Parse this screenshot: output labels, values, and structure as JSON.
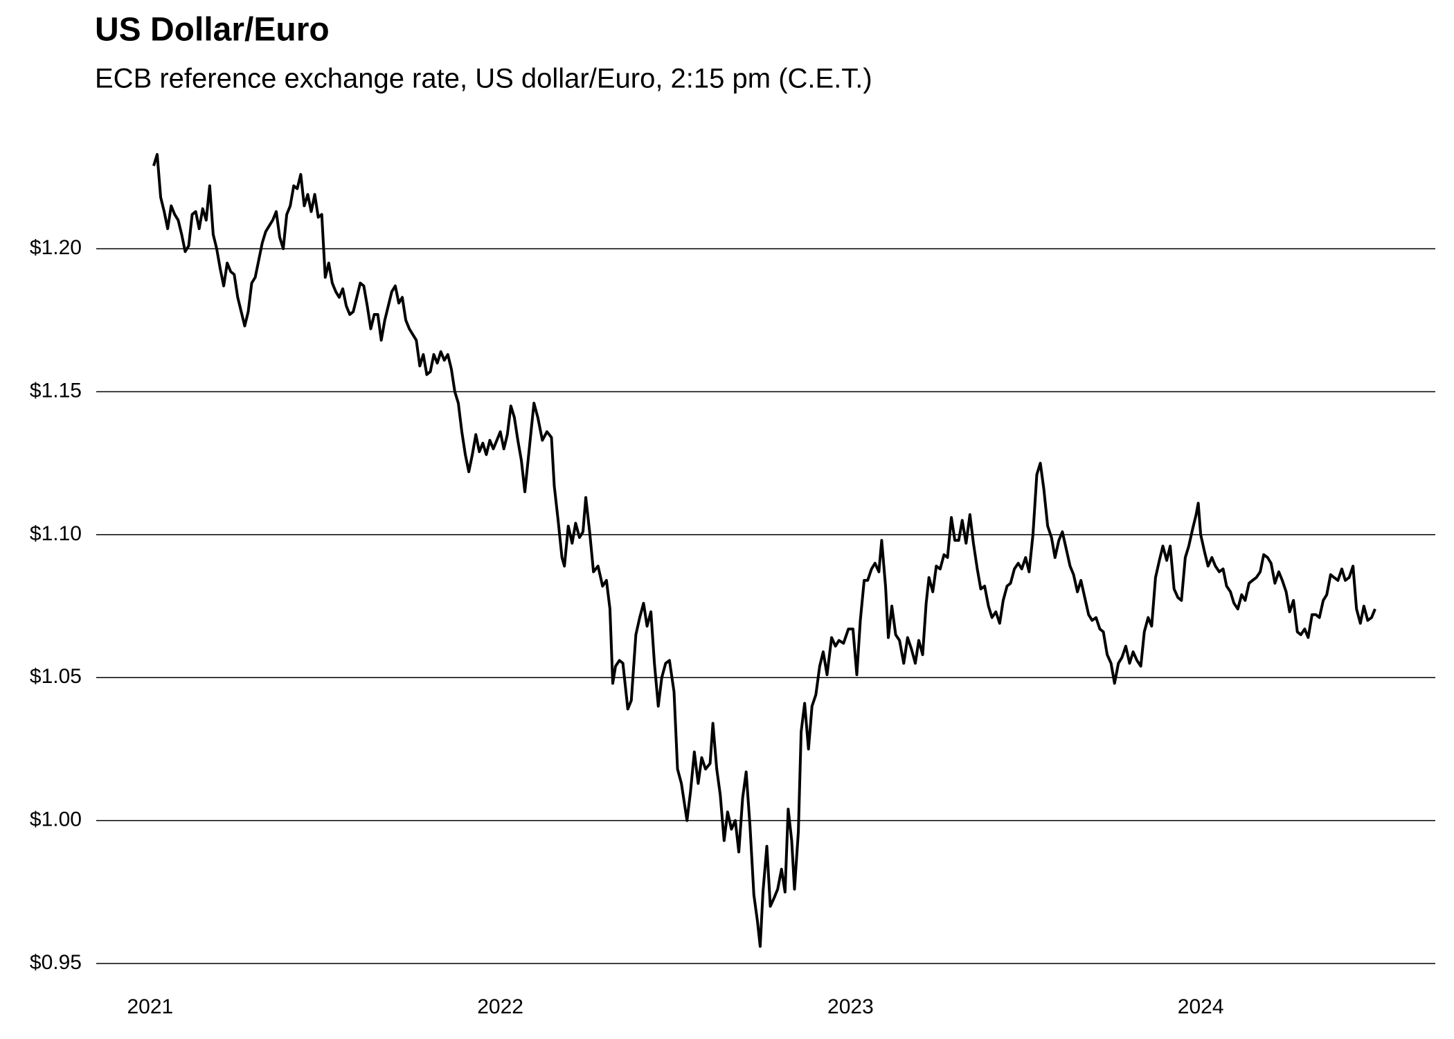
{
  "chart_data": {
    "type": "line",
    "title": "US Dollar/Euro",
    "subtitle": "ECB reference exchange rate, US dollar/Euro, 2:15 pm (C.E.T.)",
    "color": "#000000",
    "grid": true,
    "xlim": [
      2020.846,
      2024.67
    ],
    "xticks": [
      2021,
      2022,
      2023,
      2024
    ],
    "ylim": [
      0.95,
      1.24
    ],
    "yticks": [
      {
        "value": 0.95,
        "label": "$0.95"
      },
      {
        "value": 1.0,
        "label": "$1.00"
      },
      {
        "value": 1.05,
        "label": "$1.05"
      },
      {
        "value": 1.1,
        "label": "$1.10"
      },
      {
        "value": 1.15,
        "label": "$1.15"
      },
      {
        "value": 1.2,
        "label": "$1.20"
      }
    ],
    "x": [
      2021.01,
      2021.02,
      2021.03,
      2021.04,
      2021.05,
      2021.06,
      2021.07,
      2021.08,
      2021.09,
      2021.1,
      2021.11,
      2021.12,
      2021.13,
      2021.14,
      2021.15,
      2021.16,
      2021.17,
      2021.18,
      2021.19,
      2021.2,
      2021.21,
      2021.22,
      2021.23,
      2021.24,
      2021.25,
      2021.26,
      2021.27,
      2021.28,
      2021.29,
      2021.3,
      2021.31,
      2021.32,
      2021.33,
      2021.34,
      2021.35,
      2021.36,
      2021.37,
      2021.38,
      2021.39,
      2021.4,
      2021.41,
      2021.42,
      2021.43,
      2021.44,
      2021.45,
      2021.46,
      2021.47,
      2021.48,
      2021.49,
      2021.5,
      2021.51,
      2021.52,
      2021.53,
      2021.54,
      2021.55,
      2021.56,
      2021.57,
      2021.58,
      2021.59,
      2021.6,
      2021.61,
      2021.62,
      2021.63,
      2021.64,
      2021.65,
      2021.66,
      2021.67,
      2021.68,
      2021.69,
      2021.7,
      2021.71,
      2021.72,
      2021.73,
      2021.74,
      2021.75,
      2021.76,
      2021.77,
      2021.78,
      2021.79,
      2021.8,
      2021.81,
      2021.82,
      2021.83,
      2021.84,
      2021.85,
      2021.86,
      2021.87,
      2021.88,
      2021.89,
      2021.9,
      2021.91,
      2021.92,
      2021.93,
      2021.94,
      2021.95,
      2021.96,
      2021.97,
      2021.98,
      2021.99,
      2022.0,
      2022.01,
      2022.02,
      2022.03,
      2022.04,
      2022.05,
      2022.06,
      2022.07,
      2022.096,
      2022.107,
      2022.12,
      2022.133,
      2022.146,
      2022.154,
      2022.165,
      2022.176,
      2022.183,
      2022.194,
      2022.205,
      2022.215,
      2022.226,
      2022.236,
      2022.244,
      2022.255,
      2022.266,
      2022.279,
      2022.292,
      2022.303,
      2022.313,
      2022.321,
      2022.329,
      2022.34,
      2022.35,
      2022.364,
      2022.374,
      2022.387,
      2022.398,
      2022.409,
      2022.419,
      2022.43,
      2022.44,
      2022.451,
      2022.461,
      2022.472,
      2022.483,
      2022.496,
      2022.506,
      2022.517,
      2022.533,
      2022.543,
      2022.554,
      2022.565,
      2022.575,
      2022.586,
      2022.599,
      2022.607,
      2022.618,
      2022.628,
      2022.639,
      2022.649,
      2022.66,
      2022.671,
      2022.681,
      2022.692,
      2022.702,
      2022.713,
      2022.724,
      2022.734,
      2022.742,
      2022.75,
      2022.761,
      2022.771,
      2022.782,
      2022.792,
      2022.803,
      2022.813,
      2022.822,
      2022.832,
      2022.84,
      2022.851,
      2022.859,
      2022.869,
      2022.88,
      2022.89,
      2022.901,
      2022.912,
      2022.922,
      2022.933,
      2022.946,
      2022.957,
      2022.967,
      2022.98,
      2022.994,
      2023.007,
      2023.018,
      2023.028,
      2023.039,
      2023.049,
      2023.06,
      2023.07,
      2023.081,
      2023.089,
      2023.1,
      2023.108,
      2023.118,
      2023.129,
      2023.14,
      2023.152,
      2023.163,
      2023.174,
      2023.185,
      2023.195,
      2023.206,
      2023.216,
      2023.224,
      2023.235,
      2023.245,
      2023.256,
      2023.267,
      2023.277,
      2023.288,
      2023.298,
      2023.309,
      2023.319,
      2023.33,
      2023.341,
      2023.351,
      2023.362,
      2023.372,
      2023.383,
      2023.394,
      2023.404,
      2023.415,
      2023.426,
      2023.436,
      2023.447,
      2023.457,
      2023.468,
      2023.479,
      2023.489,
      2023.5,
      2023.51,
      2023.521,
      2023.532,
      2023.542,
      2023.552,
      2023.563,
      2023.574,
      2023.584,
      2023.595,
      2023.605,
      2023.616,
      2023.627,
      2023.637,
      2023.648,
      2023.658,
      2023.669,
      2023.68,
      2023.69,
      2023.701,
      2023.712,
      2023.722,
      2023.733,
      2023.744,
      2023.754,
      2023.765,
      2023.775,
      2023.786,
      2023.797,
      2023.807,
      2023.818,
      2023.829,
      2023.839,
      2023.85,
      2023.86,
      2023.871,
      2023.882,
      2023.892,
      2023.903,
      2023.913,
      2023.924,
      2023.935,
      2023.945,
      2023.956,
      2023.966,
      2023.977,
      2023.987,
      2023.993,
      2024.0,
      2024.011,
      2024.021,
      2024.032,
      2024.042,
      2024.053,
      2024.064,
      2024.074,
      2024.085,
      2024.095,
      2024.106,
      2024.117,
      2024.127,
      2024.138,
      2024.148,
      2024.159,
      2024.17,
      2024.18,
      2024.191,
      2024.201,
      2024.212,
      2024.223,
      2024.233,
      2024.244,
      2024.254,
      2024.265,
      2024.276,
      2024.286,
      2024.297,
      2024.307,
      2024.318,
      2024.329,
      2024.339,
      2024.35,
      2024.36,
      2024.371,
      2024.381,
      2024.392,
      2024.403,
      2024.413,
      2024.424,
      2024.435,
      2024.445,
      2024.456,
      2024.466,
      2024.477,
      2024.488,
      2024.498
    ],
    "values": [
      1.229,
      1.233,
      1.218,
      1.213,
      1.207,
      1.215,
      1.212,
      1.21,
      1.205,
      1.199,
      1.201,
      1.212,
      1.213,
      1.207,
      1.214,
      1.21,
      1.222,
      1.205,
      1.2,
      1.193,
      1.187,
      1.195,
      1.192,
      1.191,
      1.183,
      1.178,
      1.173,
      1.178,
      1.188,
      1.19,
      1.196,
      1.202,
      1.206,
      1.208,
      1.21,
      1.213,
      1.204,
      1.2,
      1.212,
      1.215,
      1.222,
      1.221,
      1.226,
      1.215,
      1.219,
      1.213,
      1.219,
      1.211,
      1.212,
      1.19,
      1.195,
      1.188,
      1.185,
      1.183,
      1.186,
      1.18,
      1.177,
      1.178,
      1.183,
      1.188,
      1.187,
      1.18,
      1.172,
      1.177,
      1.177,
      1.168,
      1.175,
      1.18,
      1.185,
      1.187,
      1.181,
      1.183,
      1.175,
      1.172,
      1.17,
      1.168,
      1.159,
      1.163,
      1.156,
      1.157,
      1.163,
      1.16,
      1.164,
      1.161,
      1.163,
      1.158,
      1.15,
      1.146,
      1.136,
      1.128,
      1.122,
      1.128,
      1.135,
      1.129,
      1.132,
      1.128,
      1.133,
      1.13,
      1.133,
      1.136,
      1.13,
      1.135,
      1.145,
      1.141,
      1.133,
      1.126,
      1.115,
      1.146,
      1.141,
      1.133,
      1.136,
      1.134,
      1.117,
      1.105,
      1.092,
      1.089,
      1.103,
      1.097,
      1.104,
      1.099,
      1.101,
      1.113,
      1.101,
      1.087,
      1.089,
      1.082,
      1.084,
      1.074,
      1.048,
      1.054,
      1.056,
      1.055,
      1.039,
      1.042,
      1.065,
      1.071,
      1.076,
      1.068,
      1.073,
      1.055,
      1.04,
      1.05,
      1.055,
      1.056,
      1.045,
      1.018,
      1.013,
      1.0,
      1.01,
      1.024,
      1.013,
      1.022,
      1.018,
      1.02,
      1.034,
      1.018,
      1.009,
      0.993,
      1.003,
      0.997,
      1.0,
      0.989,
      1.008,
      1.017,
      0.998,
      0.974,
      0.965,
      0.956,
      0.975,
      0.991,
      0.97,
      0.973,
      0.976,
      0.983,
      0.975,
      1.004,
      0.993,
      0.976,
      0.996,
      1.031,
      1.041,
      1.025,
      1.04,
      1.044,
      1.054,
      1.059,
      1.051,
      1.064,
      1.061,
      1.063,
      1.062,
      1.067,
      1.067,
      1.051,
      1.07,
      1.084,
      1.084,
      1.088,
      1.09,
      1.087,
      1.098,
      1.082,
      1.064,
      1.075,
      1.065,
      1.063,
      1.055,
      1.064,
      1.06,
      1.055,
      1.063,
      1.058,
      1.076,
      1.085,
      1.08,
      1.089,
      1.088,
      1.093,
      1.092,
      1.106,
      1.098,
      1.098,
      1.105,
      1.097,
      1.107,
      1.097,
      1.088,
      1.081,
      1.082,
      1.075,
      1.071,
      1.073,
      1.069,
      1.077,
      1.082,
      1.083,
      1.088,
      1.09,
      1.088,
      1.092,
      1.087,
      1.1,
      1.121,
      1.125,
      1.116,
      1.103,
      1.099,
      1.092,
      1.098,
      1.101,
      1.095,
      1.089,
      1.086,
      1.08,
      1.084,
      1.078,
      1.072,
      1.07,
      1.071,
      1.067,
      1.066,
      1.058,
      1.055,
      1.048,
      1.055,
      1.057,
      1.061,
      1.055,
      1.059,
      1.056,
      1.054,
      1.066,
      1.071,
      1.068,
      1.085,
      1.091,
      1.096,
      1.091,
      1.096,
      1.081,
      1.078,
      1.077,
      1.092,
      1.096,
      1.102,
      1.107,
      1.111,
      1.1,
      1.094,
      1.089,
      1.092,
      1.089,
      1.087,
      1.088,
      1.082,
      1.08,
      1.076,
      1.074,
      1.079,
      1.077,
      1.083,
      1.084,
      1.085,
      1.087,
      1.093,
      1.092,
      1.09,
      1.083,
      1.087,
      1.084,
      1.08,
      1.073,
      1.077,
      1.066,
      1.065,
      1.067,
      1.064,
      1.072,
      1.072,
      1.071,
      1.077,
      1.079,
      1.086,
      1.085,
      1.084,
      1.088,
      1.084,
      1.085,
      1.089,
      1.074,
      1.069,
      1.075,
      1.07,
      1.071,
      1.074
    ]
  }
}
